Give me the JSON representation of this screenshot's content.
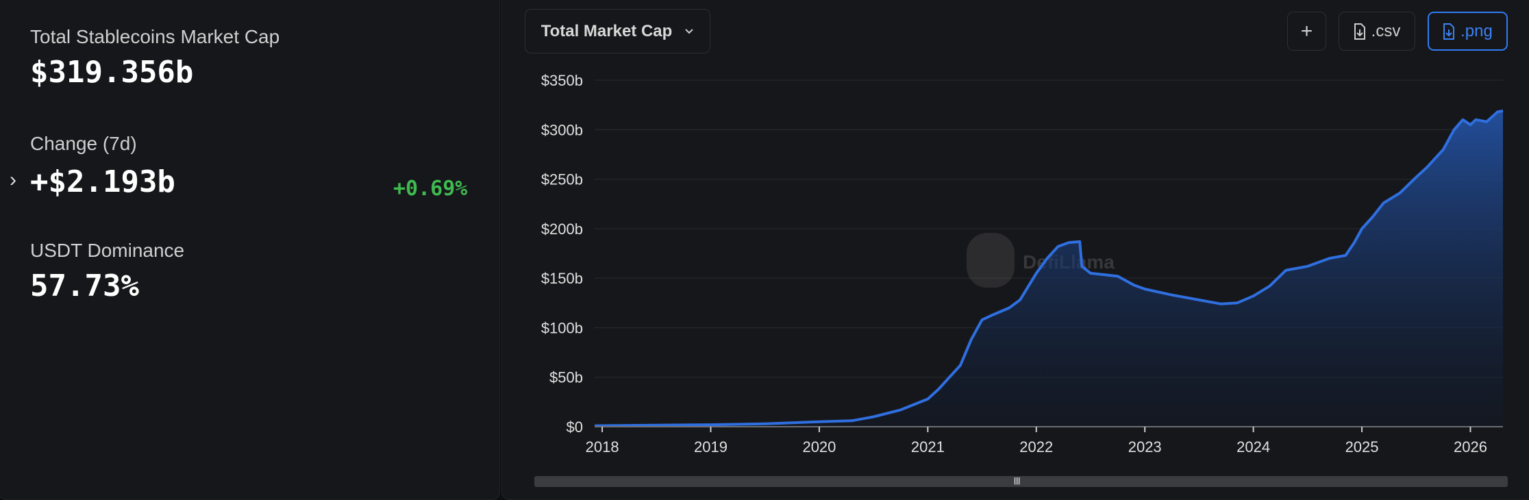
{
  "stats": {
    "total_label": "Total Stablecoins Market Cap",
    "total_value": "$319.356b",
    "change_label": "Change (7d)",
    "change_value": "+$2.193b",
    "change_pct": "+0.69%",
    "dominance_label": "USDT Dominance",
    "dominance_value": "57.73%"
  },
  "toolbar": {
    "dropdown_label": "Total Market Cap",
    "add_label": "+",
    "csv_label": ".csv",
    "png_label": ".png"
  },
  "colors": {
    "accent": "#2f6fe0",
    "positive": "#3fb950"
  },
  "watermark": "DefiLlama",
  "chart_data": {
    "type": "area",
    "title": "Total Market Cap",
    "xlabel": "",
    "ylabel": "",
    "xlim": [
      2017.93,
      2026.3
    ],
    "ylim": [
      0,
      350
    ],
    "y_ticks": [
      "$0",
      "$50b",
      "$100b",
      "$150b",
      "$200b",
      "$250b",
      "$300b",
      "$350b"
    ],
    "y_tick_values": [
      0,
      50,
      100,
      150,
      200,
      250,
      300,
      350
    ],
    "x_ticks": [
      "2018",
      "2019",
      "2020",
      "2021",
      "2022",
      "2023",
      "2024",
      "2025",
      "2026"
    ],
    "x_tick_values": [
      2018,
      2019,
      2020,
      2021,
      2022,
      2023,
      2024,
      2025,
      2026
    ],
    "grid": true,
    "series": [
      {
        "name": "Total Market Cap ($b)",
        "x": [
          2017.93,
          2018.5,
          2019,
          2019.5,
          2020,
          2020.3,
          2020.5,
          2020.75,
          2021,
          2021.1,
          2021.2,
          2021.3,
          2021.4,
          2021.5,
          2021.6,
          2021.75,
          2021.85,
          2022,
          2022.1,
          2022.2,
          2022.3,
          2022.4,
          2022.42,
          2022.5,
          2022.75,
          2022.9,
          2023,
          2023.25,
          2023.5,
          2023.7,
          2023.85,
          2024,
          2024.15,
          2024.3,
          2024.5,
          2024.7,
          2024.85,
          2024.93,
          2025,
          2025.1,
          2025.2,
          2025.35,
          2025.5,
          2025.6,
          2025.75,
          2025.85,
          2025.93,
          2026,
          2026.05,
          2026.15,
          2026.25,
          2026.3
        ],
        "values": [
          1,
          1.5,
          2,
          3,
          5,
          6,
          10,
          17,
          28,
          38,
          50,
          62,
          88,
          108,
          113,
          120,
          128,
          155,
          170,
          182,
          186,
          187,
          162,
          155,
          152,
          143,
          139,
          133,
          128,
          124,
          125,
          132,
          142,
          158,
          162,
          170,
          173,
          186,
          200,
          212,
          226,
          236,
          252,
          262,
          280,
          300,
          310,
          305,
          310,
          308,
          318,
          319
        ]
      }
    ]
  }
}
